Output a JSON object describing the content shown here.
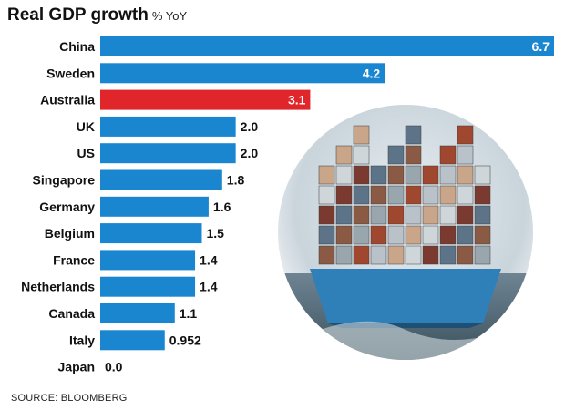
{
  "title": "Real GDP growth",
  "subtitle": "% YoY",
  "source": "SOURCE: BLOOMBERG",
  "colors": {
    "bar": "#1a86d0",
    "highlight": "#e0262a",
    "text": "#111111",
    "inside_label": "#ffffff"
  },
  "chart_data": {
    "type": "bar",
    "orientation": "horizontal",
    "categories": [
      "China",
      "Sweden",
      "Australia",
      "UK",
      "US",
      "Singapore",
      "Germany",
      "Belgium",
      "France",
      "Netherlands",
      "Canada",
      "Italy",
      "Japan"
    ],
    "values": [
      6.7,
      4.2,
      3.1,
      2.0,
      2.0,
      1.8,
      1.6,
      1.5,
      1.4,
      1.4,
      1.1,
      0.952,
      0.0
    ],
    "value_labels": [
      "6.7",
      "4.2",
      "3.1",
      "2.0",
      "2.0",
      "1.8",
      "1.6",
      "1.5",
      "1.4",
      "1.4",
      "1.1",
      "0.952",
      "0.0"
    ],
    "highlight": "Australia",
    "xlim": [
      0,
      6.7
    ],
    "grid": false,
    "legend": "none"
  }
}
